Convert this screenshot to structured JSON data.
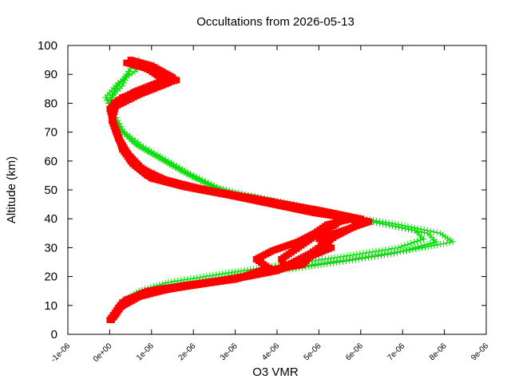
{
  "chart_data": {
    "type": "scatter",
    "title": "Occultations from 2026-05-13",
    "xlabel": "O3 VMR",
    "ylabel": "Altitude (km)",
    "xlim": [
      -1e-06,
      9e-06
    ],
    "ylim": [
      0,
      100
    ],
    "x_ticks": [
      "-1e-06",
      "0e+00",
      "1e-06",
      "2e-06",
      "3e-06",
      "4e-06",
      "5e-06",
      "6e-06",
      "7e-06",
      "8e-06",
      "9e-06"
    ],
    "y_ticks": [
      "0",
      "10",
      "20",
      "30",
      "40",
      "50",
      "60",
      "70",
      "80",
      "90",
      "100"
    ],
    "grid": false,
    "series": [
      {
        "color": "#00dd00",
        "marker": "plus",
        "profiles": [
          [
            [
              5e-08,
              5
            ],
            [
              2e-07,
              10
            ],
            [
              6e-07,
              13
            ],
            [
              1.3e-06,
              16
            ],
            [
              2.6e-06,
              19
            ],
            [
              4e-06,
              22
            ],
            [
              5.5e-06,
              25
            ],
            [
              6.8e-06,
              28
            ],
            [
              7.8e-06,
              32
            ],
            [
              7.6e-06,
              35
            ],
            [
              6.6e-06,
              38
            ],
            [
              5.5e-06,
              41
            ],
            [
              4.5e-06,
              44
            ],
            [
              3.5e-06,
              47
            ],
            [
              2.6e-06,
              50
            ],
            [
              1.9e-06,
              55
            ],
            [
              1.3e-06,
              60
            ],
            [
              7e-07,
              65
            ],
            [
              3e-07,
              70
            ],
            [
              1e-07,
              75
            ],
            [
              0.0,
              80
            ],
            [
              1.5e-07,
              85
            ],
            [
              4e-07,
              90
            ],
            [
              6e-07,
              94
            ]
          ],
          [
            [
              1e-07,
              6
            ],
            [
              3e-07,
              10
            ],
            [
              8e-07,
              14
            ],
            [
              1.6e-06,
              17
            ],
            [
              2.9e-06,
              20
            ],
            [
              4.3e-06,
              23
            ],
            [
              5.8e-06,
              26
            ],
            [
              7.1e-06,
              29
            ],
            [
              8.2e-06,
              32
            ],
            [
              7.9e-06,
              35
            ],
            [
              6.9e-06,
              38
            ],
            [
              5.7e-06,
              41
            ],
            [
              4.7e-06,
              44
            ],
            [
              3.7e-06,
              47
            ],
            [
              2.7e-06,
              50
            ],
            [
              2e-06,
              55
            ],
            [
              1.4e-06,
              60
            ],
            [
              8e-07,
              65
            ],
            [
              3.5e-07,
              70
            ],
            [
              1.5e-07,
              75
            ],
            [
              -1e-07,
              82
            ],
            [
              2e-07,
              87
            ],
            [
              6e-07,
              91
            ],
            [
              8e-07,
              94
            ]
          ],
          [
            [
              0.0,
              5
            ],
            [
              2.5e-07,
              11
            ],
            [
              7e-07,
              15
            ],
            [
              1.4e-06,
              18
            ],
            [
              2.7e-06,
              21
            ],
            [
              4.1e-06,
              24
            ],
            [
              5.6e-06,
              27
            ],
            [
              6.9e-06,
              30
            ],
            [
              7.5e-06,
              33
            ],
            [
              7.3e-06,
              36
            ],
            [
              6.3e-06,
              39
            ],
            [
              5.3e-06,
              42
            ],
            [
              4.3e-06,
              45
            ],
            [
              3.3e-06,
              48
            ],
            [
              2.5e-06,
              51
            ],
            [
              1.8e-06,
              56
            ],
            [
              1.2e-06,
              61
            ],
            [
              6e-07,
              66
            ],
            [
              2.5e-07,
              71
            ],
            [
              5e-08,
              76
            ],
            [
              -5e-08,
              81
            ],
            [
              3e-07,
              86
            ],
            [
              5e-07,
              92
            ],
            [
              7e-07,
              95
            ]
          ]
        ]
      },
      {
        "color": "#ff0000",
        "marker": "square",
        "profiles": [
          [
            [
              5e-08,
              5
            ],
            [
              2.5e-07,
              10
            ],
            [
              8e-07,
              14
            ],
            [
              1.6e-06,
              16
            ],
            [
              2.5e-06,
              18
            ],
            [
              3.3e-06,
              20
            ],
            [
              4e-06,
              22
            ],
            [
              4.4e-06,
              25
            ],
            [
              4.8e-06,
              28
            ],
            [
              5.1e-06,
              31
            ],
            [
              5.4e-06,
              34
            ],
            [
              5.8e-06,
              37
            ],
            [
              6e-06,
              40
            ],
            [
              5e-06,
              43
            ],
            [
              3.8e-06,
              46
            ],
            [
              2.6e-06,
              49
            ],
            [
              1.6e-06,
              52
            ],
            [
              9e-07,
              55
            ],
            [
              5e-07,
              60
            ],
            [
              3e-07,
              65
            ],
            [
              1.5e-07,
              70
            ],
            [
              5e-08,
              75
            ],
            [
              1e-07,
              80
            ],
            [
              6e-07,
              84
            ],
            [
              1.3e-06,
              88
            ],
            [
              9e-07,
              92
            ],
            [
              4e-07,
              94
            ]
          ],
          [
            [
              1e-07,
              6
            ],
            [
              3e-07,
              11
            ],
            [
              9e-07,
              15
            ],
            [
              1.8e-06,
              17
            ],
            [
              2.8e-06,
              19
            ],
            [
              3.6e-06,
              21
            ],
            [
              4.2e-06,
              23
            ],
            [
              4.1e-06,
              26
            ],
            [
              4.4e-06,
              29
            ],
            [
              4.7e-06,
              32
            ],
            [
              5e-06,
              35
            ],
            [
              5.4e-06,
              38
            ],
            [
              5.6e-06,
              41
            ],
            [
              4.6e-06,
              44
            ],
            [
              3.5e-06,
              47
            ],
            [
              2.3e-06,
              50
            ],
            [
              1.4e-06,
              53
            ],
            [
              8e-07,
              57
            ],
            [
              4.5e-07,
              62
            ],
            [
              2.5e-07,
              67
            ],
            [
              1e-07,
              72
            ],
            [
              5e-08,
              77
            ],
            [
              2e-07,
              81
            ],
            [
              9e-07,
              85
            ],
            [
              1.5e-06,
              89
            ],
            [
              1e-06,
              93
            ],
            [
              5e-07,
              95
            ]
          ],
          [
            [
              0.0,
              5
            ],
            [
              2e-07,
              9
            ],
            [
              7e-07,
              13
            ],
            [
              1.5e-06,
              16
            ],
            [
              2.4e-06,
              18
            ],
            [
              3.2e-06,
              20
            ],
            [
              3.8e-06,
              23
            ],
            [
              3.5e-06,
              26
            ],
            [
              3.9e-06,
              29
            ],
            [
              4.5e-06,
              32
            ],
            [
              4.9e-06,
              35
            ],
            [
              5.2e-06,
              38
            ],
            [
              5.8e-06,
              40
            ],
            [
              4.9e-06,
              42
            ],
            [
              3.9e-06,
              45
            ],
            [
              2.9e-06,
              48
            ],
            [
              1.8e-06,
              51
            ],
            [
              1e-06,
              54
            ],
            [
              5.5e-07,
              59
            ],
            [
              3e-07,
              64
            ],
            [
              2e-07,
              69
            ],
            [
              5e-08,
              74
            ],
            [
              1.5e-07,
              79
            ],
            [
              7e-07,
              83
            ],
            [
              1.4e-06,
              87
            ],
            [
              1.1e-06,
              91
            ],
            [
              6e-07,
              94
            ]
          ],
          [
            [
              1.5e-07,
              7
            ],
            [
              4e-07,
              12
            ],
            [
              1e-06,
              15
            ],
            [
              2e-06,
              17
            ],
            [
              3e-06,
              19
            ],
            [
              3.7e-06,
              22
            ],
            [
              4.6e-06,
              24
            ],
            [
              4.8e-06,
              27
            ],
            [
              5.3e-06,
              30
            ],
            [
              5e-06,
              33
            ],
            [
              5.6e-06,
              36
            ],
            [
              6.2e-06,
              39
            ],
            [
              5.3e-06,
              42
            ],
            [
              4.2e-06,
              45
            ],
            [
              3e-06,
              48
            ],
            [
              2e-06,
              51
            ],
            [
              1.2e-06,
              54
            ],
            [
              7e-07,
              58
            ],
            [
              4e-07,
              63
            ],
            [
              2e-07,
              68
            ],
            [
              1e-07,
              73
            ],
            [
              0.0,
              78
            ],
            [
              3e-07,
              82
            ],
            [
              1.1e-06,
              86
            ],
            [
              1.6e-06,
              88
            ],
            [
              1.2e-06,
              90
            ],
            [
              7e-07,
              93
            ]
          ]
        ]
      }
    ]
  }
}
